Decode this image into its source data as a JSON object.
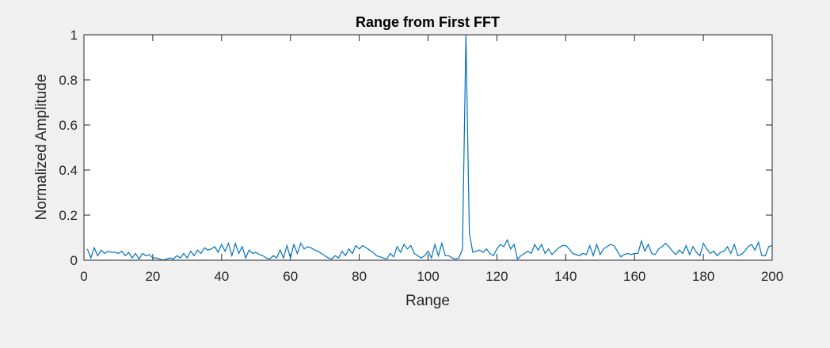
{
  "chart_data": {
    "type": "line",
    "title": "Range from First FFT",
    "xlabel": "Range",
    "ylabel": "Normalized Amplitude",
    "x": [
      1,
      2,
      3,
      4,
      5,
      6,
      7,
      8,
      9,
      10,
      11,
      12,
      13,
      14,
      15,
      16,
      17,
      18,
      19,
      20,
      21,
      22,
      23,
      24,
      25,
      26,
      27,
      28,
      29,
      30,
      31,
      32,
      33,
      34,
      35,
      36,
      37,
      38,
      39,
      40,
      41,
      42,
      43,
      44,
      45,
      46,
      47,
      48,
      49,
      50,
      51,
      52,
      53,
      54,
      55,
      56,
      57,
      58,
      59,
      60,
      61,
      62,
      63,
      64,
      65,
      66,
      67,
      68,
      69,
      70,
      71,
      72,
      73,
      74,
      75,
      76,
      77,
      78,
      79,
      80,
      81,
      82,
      83,
      84,
      85,
      86,
      87,
      88,
      89,
      90,
      91,
      92,
      93,
      94,
      95,
      96,
      97,
      98,
      99,
      100,
      101,
      102,
      103,
      104,
      105,
      106,
      107,
      108,
      109,
      110,
      111,
      112,
      113,
      114,
      115,
      116,
      117,
      118,
      119,
      120,
      121,
      122,
      123,
      124,
      125,
      126,
      127,
      128,
      129,
      130,
      131,
      132,
      133,
      134,
      135,
      136,
      137,
      138,
      139,
      140,
      141,
      142,
      143,
      144,
      145,
      146,
      147,
      148,
      149,
      150,
      151,
      152,
      153,
      154,
      155,
      156,
      157,
      158,
      159,
      160,
      161,
      162,
      163,
      164,
      165,
      166,
      167,
      168,
      169,
      170,
      171,
      172,
      173,
      174,
      175,
      176,
      177,
      178,
      179,
      180,
      181,
      182,
      183,
      184,
      185,
      186,
      187,
      188,
      189,
      190,
      191,
      192,
      193,
      194,
      195,
      196,
      197,
      198,
      199,
      200
    ],
    "values": [
      0.05,
      0.01,
      0.055,
      0.02,
      0.045,
      0.03,
      0.04,
      0.035,
      0.035,
      0.03,
      0.04,
      0.02,
      0.035,
      0.01,
      0.03,
      0.005,
      0.03,
      0.02,
      0.025,
      0.01,
      0.01,
      0.005,
      0.0,
      0.005,
      0.01,
      0.005,
      0.02,
      0.01,
      0.03,
      0.01,
      0.04,
      0.02,
      0.045,
      0.03,
      0.055,
      0.045,
      0.05,
      0.06,
      0.035,
      0.07,
      0.04,
      0.075,
      0.02,
      0.075,
      0.03,
      0.06,
      0.01,
      0.045,
      0.03,
      0.035,
      0.025,
      0.02,
      0.01,
      0.005,
      0.02,
      0.01,
      0.045,
      0.01,
      0.065,
      0.01,
      0.07,
      0.03,
      0.075,
      0.05,
      0.06,
      0.055,
      0.045,
      0.04,
      0.03,
      0.02,
      0.01,
      0.005,
      0.02,
      0.01,
      0.04,
      0.02,
      0.05,
      0.03,
      0.065,
      0.05,
      0.065,
      0.055,
      0.045,
      0.035,
      0.02,
      0.015,
      0.01,
      0.005,
      0.03,
      0.015,
      0.06,
      0.035,
      0.07,
      0.05,
      0.065,
      0.03,
      0.02,
      0.01,
      0.02,
      0.04,
      0.01,
      0.07,
      0.02,
      0.075,
      0.02,
      0.02,
      0.01,
      0.005,
      0.01,
      0.05,
      1,
      0.12,
      0.035,
      0.04,
      0.045,
      0.035,
      0.05,
      0.03,
      0.02,
      0.05,
      0.07,
      0.06,
      0.09,
      0.05,
      0.07,
      0.005,
      0.02,
      0.03,
      0.04,
      0.03,
      0.07,
      0.045,
      0.07,
      0.03,
      0.05,
      0.025,
      0.04,
      0.055,
      0.065,
      0.065,
      0.05,
      0.03,
      0.025,
      0.02,
      0.03,
      0.025,
      0.065,
      0.02,
      0.07,
      0.025,
      0.05,
      0.06,
      0.07,
      0.065,
      0.04,
      0.015,
      0.025,
      0.03,
      0.025,
      0.03,
      0.03,
      0.085,
      0.04,
      0.07,
      0.03,
      0.025,
      0.05,
      0.06,
      0.075,
      0.06,
      0.04,
      0.025,
      0.045,
      0.03,
      0.065,
      0.025,
      0.06,
      0.035,
      0.02,
      0.075,
      0.05,
      0.03,
      0.04,
      0.02,
      0.035,
      0.04,
      0.06,
      0.03,
      0.07,
      0.02,
      0.025,
      0.04,
      0.06,
      0.07,
      0.045,
      0.08,
      0.02,
      0.02,
      0.06,
      0.065
    ],
    "color": "#0072bd",
    "xlim": [
      0,
      200
    ],
    "xticks": [
      0,
      20,
      40,
      60,
      80,
      100,
      120,
      140,
      160,
      180,
      200
    ],
    "ylim": [
      0,
      1
    ],
    "yticks": [
      0,
      0.2,
      0.4,
      0.6,
      0.8,
      1
    ]
  }
}
